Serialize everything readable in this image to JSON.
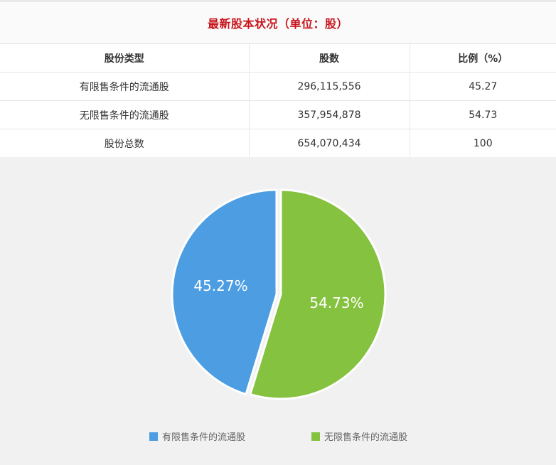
{
  "title": "最新股本状况（单位：股）",
  "table": {
    "headers": [
      "股份类型",
      "股数",
      "比例（%）"
    ],
    "rows": [
      [
        "有限售条件的流通股",
        "296,115,556",
        "45.27"
      ],
      [
        "无限售条件的流通股",
        "357,954,878",
        "54.73"
      ],
      [
        "股份总数",
        "654,070,434",
        "100"
      ]
    ]
  },
  "chart_data": {
    "type": "pie",
    "categories": [
      "有限售条件的流通股",
      "无限售条件的流通股"
    ],
    "values": [
      45.27,
      54.73
    ],
    "labels": [
      "45.27%",
      "54.73%"
    ],
    "colors": [
      "#4c9de2",
      "#85c23f"
    ],
    "legend_position": "bottom"
  }
}
